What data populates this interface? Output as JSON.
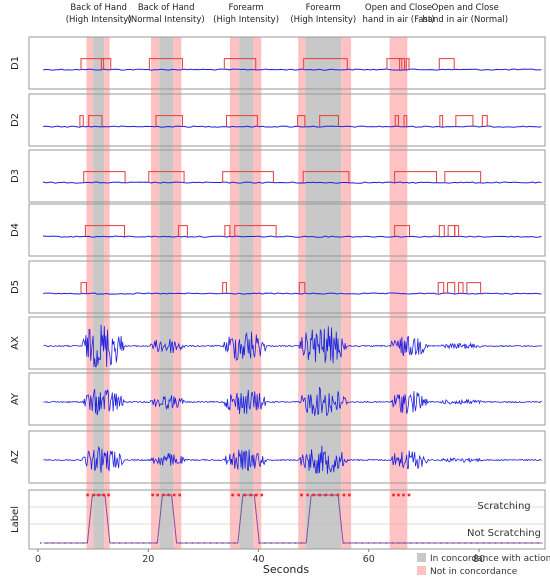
{
  "chart_data": {
    "type": "line",
    "xlabel": "Seconds",
    "xlim": [
      0,
      91
    ],
    "xticks": [
      0,
      20,
      40,
      60,
      80
    ],
    "actions": [
      {
        "label_lines": [
          "Back of Hand",
          "(High Intensity)"
        ],
        "concordance": [
          10,
          12
        ],
        "not_concordance": [
          [
            8.8,
            10
          ],
          [
            12,
            13
          ]
        ]
      },
      {
        "label_lines": [
          "Back of Hand",
          "(Normal Intensity)"
        ],
        "concordance": [
          22,
          24.5
        ],
        "not_concordance": [
          [
            20.5,
            22
          ],
          [
            24.5,
            26
          ]
        ]
      },
      {
        "label_lines": [
          "Forearm",
          "(High Intensity)"
        ],
        "concordance": [
          36.5,
          39
        ],
        "not_concordance": [
          [
            34.8,
            36.5
          ],
          [
            39,
            40.5
          ]
        ]
      },
      {
        "label_lines": [
          "Forearm",
          "(High Intensity)"
        ],
        "concordance": [
          48.5,
          55
        ],
        "not_concordance": [
          [
            47.2,
            48.5
          ],
          [
            55,
            56.8
          ]
        ]
      },
      {
        "label_lines": [
          "Open and Close",
          "hand in air (Fast)"
        ],
        "concordance": null,
        "not_concordance": [
          [
            63.8,
            67
          ]
        ]
      },
      {
        "label_lines": [
          "Open and Close",
          "hand in air (Normal)"
        ],
        "concordance": null,
        "not_concordance": []
      }
    ],
    "panels": [
      {
        "label": "D1",
        "kind": "digital",
        "pulses": [
          [
            7.8,
            13.2
          ],
          [
            11.5,
            11.9
          ],
          [
            20.2,
            26.2
          ],
          [
            33.8,
            39.5
          ],
          [
            48.2,
            56.1
          ],
          [
            63.3,
            66.5
          ],
          [
            65.6,
            66.0
          ],
          [
            66.8,
            67.3
          ],
          [
            72.8,
            75.5
          ]
        ]
      },
      {
        "label": "D2",
        "kind": "digital",
        "pulses": [
          [
            7.6,
            8.2
          ],
          [
            9.2,
            11.6
          ],
          [
            21.4,
            26.2
          ],
          [
            34.2,
            39.8
          ],
          [
            47.1,
            48.4
          ],
          [
            51.1,
            54.5
          ],
          [
            64.8,
            65.4
          ],
          [
            66.4,
            66.9
          ],
          [
            72.9,
            73.4
          ],
          [
            75.8,
            78.9
          ],
          [
            80.6,
            81.5
          ]
        ]
      },
      {
        "label": "D3",
        "kind": "digital",
        "pulses": [
          [
            8.3,
            15.8
          ],
          [
            20.1,
            26.5
          ],
          [
            33.5,
            42.7
          ],
          [
            48.1,
            56.4
          ],
          [
            64.7,
            72.3
          ],
          [
            73.8,
            80.3
          ]
        ]
      },
      {
        "label": "D4",
        "kind": "digital",
        "pulses": [
          [
            8.6,
            15.7
          ],
          [
            25.5,
            27.1
          ],
          [
            33.9,
            34.8
          ],
          [
            35.7,
            43.2
          ],
          [
            64.7,
            67.4
          ],
          [
            72.8,
            73.7
          ],
          [
            74.4,
            75.6
          ],
          [
            75.6,
            76.3
          ]
        ]
      },
      {
        "label": "D5",
        "kind": "digital",
        "pulses": [
          [
            7.8,
            8.8
          ],
          [
            33.5,
            34.2
          ],
          [
            47.4,
            48.4
          ],
          [
            72.6,
            73.6
          ],
          [
            74.3,
            75.6
          ],
          [
            76.3,
            77.1
          ],
          [
            77.8,
            80.3
          ]
        ]
      },
      {
        "label": "AX",
        "kind": "analog",
        "bursts": [
          [
            8,
            15.6,
            1.0
          ],
          [
            20.3,
            26.7,
            0.35
          ],
          [
            33.6,
            41.5,
            0.7
          ],
          [
            47.3,
            56.1,
            0.85
          ],
          [
            63.7,
            70.7,
            0.45
          ],
          [
            72.5,
            81,
            0.12
          ]
        ]
      },
      {
        "label": "AY",
        "kind": "analog",
        "bursts": [
          [
            8,
            15.6,
            0.6
          ],
          [
            20.3,
            26.7,
            0.3
          ],
          [
            33.6,
            41.5,
            0.55
          ],
          [
            47.3,
            56.1,
            0.65
          ],
          [
            63.7,
            70.7,
            0.5
          ],
          [
            72.5,
            81,
            0.12
          ]
        ]
      },
      {
        "label": "AZ",
        "kind": "analog",
        "bursts": [
          [
            8,
            15.6,
            0.55
          ],
          [
            20.3,
            26.7,
            0.3
          ],
          [
            33.6,
            41.5,
            0.45
          ],
          [
            47.3,
            56.1,
            0.6
          ],
          [
            63.7,
            70.7,
            0.45
          ],
          [
            72.5,
            81,
            0.1
          ]
        ]
      },
      {
        "label": "Label",
        "kind": "label",
        "scratching_intervals": [
          [
            9.5,
            12.5
          ],
          [
            22.2,
            24.6
          ],
          [
            36.8,
            39.6
          ],
          [
            49.2,
            54.8
          ]
        ],
        "red_markers": [
          9.0,
          10.1,
          11.0,
          11.9,
          12.8,
          20.8,
          21.7,
          22.7,
          23.7,
          24.7,
          25.7,
          35.3,
          36.4,
          37.5,
          38.6,
          39.6,
          40.6,
          47.8,
          48.9,
          50.0,
          51.1,
          52.2,
          53.3,
          54.4,
          55.5,
          56.5,
          64.5,
          65.4,
          66.3,
          67.3
        ],
        "levels": [
          "Scratching",
          "Not Scratching"
        ]
      }
    ],
    "legend": [
      {
        "label": "In concordance with actions",
        "color": "#c8c8c8"
      },
      {
        "label": "Not in concordance",
        "color": "#ffc2c2"
      }
    ]
  },
  "colors": {
    "signal": "#2020e0",
    "digital": "#e63b3b",
    "concordance": "#c8c8c8",
    "not_concordance": "#ffc2c2",
    "label_curve": "#8050a0",
    "marker": "#ff2020"
  }
}
